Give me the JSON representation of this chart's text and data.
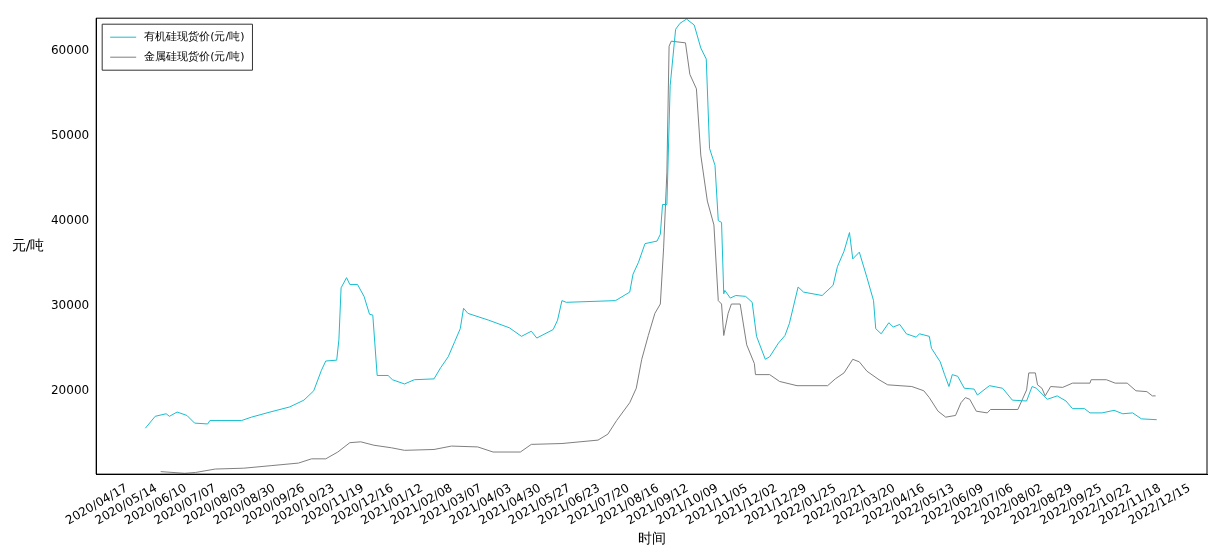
{
  "chart_data": {
    "type": "line",
    "xlabel": "时间",
    "ylabel": "元/吨",
    "legend": "top left",
    "grid": false,
    "marker": "none",
    "line_style": "solid",
    "xlim": [
      "2020-03-20",
      "2022-12-31"
    ],
    "ylim": [
      10200,
      63800
    ],
    "yticks": [
      20000,
      30000,
      40000,
      50000,
      60000
    ],
    "xticks": [
      {
        "value": "2020-03-21",
        "label": null
      },
      {
        "value": "2020-04-17",
        "label": "2020/04/17"
      },
      {
        "value": "2020-05-14",
        "label": "2020/05/14"
      },
      {
        "value": "2020-06-10",
        "label": "2020/06/10"
      },
      {
        "value": "2020-07-07",
        "label": "2020/07/07"
      },
      {
        "value": "2020-08-03",
        "label": "2020/08/03"
      },
      {
        "value": "2020-08-30",
        "label": "2020/08/30"
      },
      {
        "value": "2020-09-26",
        "label": "2020/09/26"
      },
      {
        "value": "2020-10-23",
        "label": "2020/10/23"
      },
      {
        "value": "2020-11-19",
        "label": "2020/11/19"
      },
      {
        "value": "2020-12-16",
        "label": "2020/12/16"
      },
      {
        "value": "2021-01-12",
        "label": "2021/01/12"
      },
      {
        "value": "2021-02-08",
        "label": "2021/02/08"
      },
      {
        "value": "2021-03-07",
        "label": "2021/03/07"
      },
      {
        "value": "2021-04-03",
        "label": "2021/04/03"
      },
      {
        "value": "2021-04-30",
        "label": "2021/04/30"
      },
      {
        "value": "2021-05-27",
        "label": "2021/05/27"
      },
      {
        "value": "2021-06-23",
        "label": "2021/06/23"
      },
      {
        "value": "2021-07-20",
        "label": "2021/07/20"
      },
      {
        "value": "2021-08-16",
        "label": "2021/08/16"
      },
      {
        "value": "2021-09-12",
        "label": "2021/09/12"
      },
      {
        "value": "2021-10-09",
        "label": "2021/10/09"
      },
      {
        "value": "2021-11-05",
        "label": "2021/11/05"
      },
      {
        "value": "2021-12-02",
        "label": "2021/12/02"
      },
      {
        "value": "2021-12-29",
        "label": "2021/12/29"
      },
      {
        "value": "2022-01-25",
        "label": "2022/01/25"
      },
      {
        "value": "2022-02-21",
        "label": "2022/02/21"
      },
      {
        "value": "2022-03-20",
        "label": "2022/03/20"
      },
      {
        "value": "2022-04-16",
        "label": "2022/04/16"
      },
      {
        "value": "2022-05-13",
        "label": "2022/05/13"
      },
      {
        "value": "2022-06-09",
        "label": "2022/06/09"
      },
      {
        "value": "2022-07-06",
        "label": "2022/07/06"
      },
      {
        "value": "2022-08-02",
        "label": "2022/08/02"
      },
      {
        "value": "2022-08-29",
        "label": "2022/08/29"
      },
      {
        "value": "2022-09-25",
        "label": "2022/09/25"
      },
      {
        "value": "2022-10-22",
        "label": "2022/10/22"
      },
      {
        "value": "2022-11-18",
        "label": "2022/11/18"
      },
      {
        "value": "2022-12-15",
        "label": "2022/12/15"
      }
    ],
    "series": [
      {
        "name": "有机硅现货价(元/吨)",
        "color": "#17becf",
        "x": [
          "2020-05-04",
          "2020-05-13",
          "2020-05-23",
          "2020-05-26",
          "2020-06-02",
          "2020-06-11",
          "2020-06-18",
          "2020-06-30",
          "2020-07-02",
          "2020-07-31",
          "2020-08-09",
          "2020-08-26",
          "2020-09-13",
          "2020-09-26",
          "2020-10-05",
          "2020-10-12",
          "2020-10-16",
          "2020-10-26",
          "2020-10-28",
          "2020-10-30",
          "2020-11-04",
          "2020-11-07",
          "2020-11-14",
          "2020-11-20",
          "2020-11-25",
          "2020-11-28",
          "2020-12-02",
          "2020-12-12",
          "2020-12-16",
          "2020-12-27",
          "2021-01-05",
          "2021-01-23",
          "2021-01-29",
          "2021-02-05",
          "2021-02-11",
          "2021-02-16",
          "2021-02-19",
          "2021-02-23",
          "2021-03-14",
          "2021-04-02",
          "2021-04-13",
          "2021-04-22",
          "2021-04-27",
          "2021-05-12",
          "2021-05-16",
          "2021-05-20",
          "2021-05-24",
          "2021-07-08",
          "2021-07-21",
          "2021-07-24",
          "2021-07-29",
          "2021-08-04",
          "2021-08-15",
          "2021-08-18",
          "2021-08-20",
          "2021-08-24",
          "2021-08-27",
          "2021-09-01",
          "2021-09-05",
          "2021-09-11",
          "2021-09-18",
          "2021-09-24",
          "2021-09-29",
          "2021-10-02",
          "2021-10-07",
          "2021-10-10",
          "2021-10-13",
          "2021-10-15",
          "2021-10-16",
          "2021-10-21",
          "2021-10-26",
          "2021-11-04",
          "2021-11-10",
          "2021-11-14",
          "2021-11-22",
          "2021-11-26",
          "2021-12-04",
          "2021-12-10",
          "2021-12-14",
          "2021-12-22",
          "2021-12-27",
          "2022-01-13",
          "2022-01-23",
          "2022-01-27",
          "2022-02-02",
          "2022-02-07",
          "2022-02-10",
          "2022-02-16",
          "2022-02-23",
          "2022-03-01",
          "2022-03-03",
          "2022-03-08",
          "2022-03-15",
          "2022-03-19",
          "2022-03-25",
          "2022-03-31",
          "2022-04-09",
          "2022-04-12",
          "2022-04-21",
          "2022-04-23",
          "2022-05-01",
          "2022-05-05",
          "2022-05-09",
          "2022-05-12",
          "2022-05-17",
          "2022-05-23",
          "2022-06-01",
          "2022-06-04",
          "2022-06-15",
          "2022-06-27",
          "2022-07-06",
          "2022-07-19",
          "2022-07-24",
          "2022-07-28",
          "2022-08-07",
          "2022-08-16",
          "2022-08-24",
          "2022-08-30",
          "2022-09-10",
          "2022-09-15",
          "2022-09-26",
          "2022-10-07",
          "2022-10-15",
          "2022-10-24",
          "2022-11-01",
          "2022-11-15"
        ],
        "values": [
          15600,
          17000,
          17300,
          17000,
          17500,
          17100,
          16200,
          16100,
          16500,
          16500,
          16900,
          17500,
          18100,
          18900,
          20000,
          22400,
          23500,
          23600,
          26000,
          32100,
          33300,
          32500,
          32500,
          31100,
          29000,
          28900,
          21800,
          21800,
          21300,
          20800,
          21300,
          21400,
          22700,
          24000,
          25800,
          27300,
          29700,
          29100,
          28300,
          27400,
          26400,
          27000,
          26200,
          27200,
          28300,
          30600,
          30400,
          30600,
          31600,
          33700,
          35100,
          37300,
          37600,
          38400,
          41900,
          41900,
          55900,
          62500,
          63200,
          63700,
          63000,
          60300,
          59000,
          48500,
          46500,
          40000,
          39800,
          31400,
          31800,
          30900,
          31200,
          31100,
          30400,
          26400,
          23700,
          24000,
          25600,
          26500,
          27900,
          32200,
          31600,
          31200,
          32400,
          34600,
          36400,
          38600,
          35500,
          36300,
          33300,
          30600,
          27300,
          26700,
          28000,
          27500,
          27800,
          26700,
          26300,
          26700,
          26400,
          25000,
          23400,
          21900,
          20500,
          21900,
          21700,
          20300,
          20200,
          19500,
          20600,
          20300,
          18900,
          18800,
          20500,
          20300,
          19000,
          19400,
          18800,
          17900,
          17900,
          17400,
          17400,
          17700,
          17300,
          17400,
          16700,
          16600
        ]
      },
      {
        "name": "金属硅现货价(元/吨)",
        "color": "#7f7f7f",
        "x": [
          "2020-05-18",
          "2020-06-09",
          "2020-06-19",
          "2020-07-07",
          "2020-08-02",
          "2020-08-27",
          "2020-09-21",
          "2020-10-03",
          "2020-10-16",
          "2020-10-27",
          "2020-11-07",
          "2020-11-17",
          "2020-11-29",
          "2020-12-15",
          "2020-12-27",
          "2021-01-23",
          "2021-02-08",
          "2021-03-04",
          "2021-03-18",
          "2021-04-12",
          "2021-04-22",
          "2021-05-20",
          "2021-06-22",
          "2021-07-01",
          "2021-07-09",
          "2021-07-21",
          "2021-07-27",
          "2021-08-01",
          "2021-08-07",
          "2021-08-13",
          "2021-08-18",
          "2021-08-21",
          "2021-08-24",
          "2021-08-26",
          "2021-08-28",
          "2021-09-10",
          "2021-09-14",
          "2021-09-20",
          "2021-09-24",
          "2021-09-30",
          "2021-10-06",
          "2021-10-10",
          "2021-10-13",
          "2021-10-15",
          "2021-10-19",
          "2021-10-22",
          "2021-10-30",
          "2021-11-05",
          "2021-11-12",
          "2021-11-13",
          "2021-11-26",
          "2021-12-05",
          "2021-12-21",
          "2022-01-18",
          "2022-01-25",
          "2022-02-02",
          "2022-02-10",
          "2022-02-16",
          "2022-02-23",
          "2022-03-06",
          "2022-03-14",
          "2022-04-05",
          "2022-04-16",
          "2022-04-21",
          "2022-04-29",
          "2022-05-06",
          "2022-05-15",
          "2022-05-20",
          "2022-05-24",
          "2022-05-28",
          "2022-06-03",
          "2022-06-13",
          "2022-06-16",
          "2022-07-11",
          "2022-07-19",
          "2022-07-21",
          "2022-07-27",
          "2022-07-29",
          "2022-08-02",
          "2022-08-05",
          "2022-08-10",
          "2022-08-21",
          "2022-08-30",
          "2022-09-15",
          "2022-09-16",
          "2022-09-30",
          "2022-10-08",
          "2022-10-19",
          "2022-10-27",
          "2022-11-06",
          "2022-11-11",
          "2022-11-14"
        ],
        "values": [
          10500,
          10300,
          10400,
          10800,
          10900,
          11200,
          11500,
          12000,
          12000,
          12800,
          13900,
          14000,
          13600,
          13300,
          13000,
          13100,
          13500,
          13400,
          12800,
          12800,
          13700,
          13800,
          14200,
          14900,
          16500,
          18600,
          20300,
          23700,
          26500,
          29100,
          30200,
          36800,
          45700,
          60500,
          61100,
          60900,
          57200,
          55500,
          47700,
          42300,
          39500,
          30600,
          30200,
          26500,
          29100,
          30200,
          30200,
          25400,
          23200,
          21900,
          21900,
          21100,
          20600,
          20600,
          21400,
          22100,
          23700,
          23400,
          22300,
          21300,
          20700,
          20500,
          20000,
          19200,
          17600,
          16900,
          17100,
          18600,
          19200,
          19000,
          17600,
          17400,
          17800,
          17800,
          20100,
          22100,
          22100,
          20700,
          20300,
          19400,
          20500,
          20400,
          20900,
          20900,
          21300,
          21300,
          20900,
          20900,
          20000,
          19900,
          19400,
          19400
        ]
      }
    ]
  }
}
